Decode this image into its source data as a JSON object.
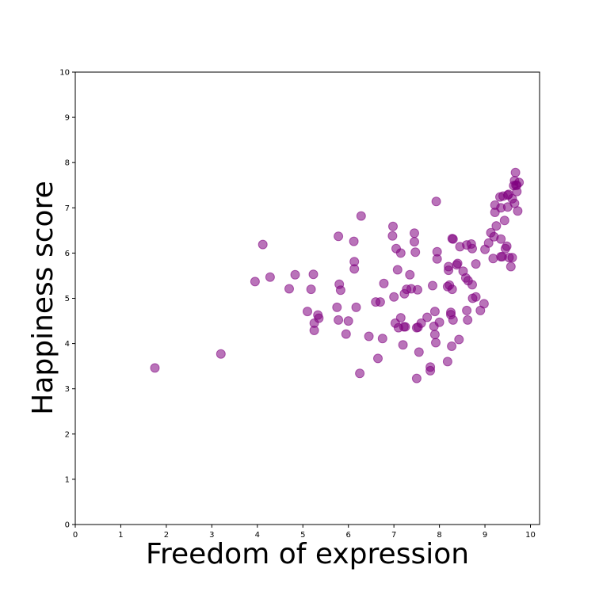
{
  "chart_data": {
    "type": "scatter",
    "title": "",
    "xlabel": "Freedom of expression",
    "ylabel": "Happiness score",
    "xlim": [
      0,
      10.2
    ],
    "ylim": [
      0,
      10
    ],
    "xticks": [
      "0",
      "1",
      "2",
      "3",
      "4",
      "5",
      "6",
      "7",
      "8",
      "9",
      "10"
    ],
    "yticks": [
      "0",
      "1",
      "2",
      "3",
      "4",
      "5",
      "6",
      "7",
      "8",
      "9",
      "10"
    ],
    "grid": false,
    "marker_color": "#800080",
    "marker_opacity": 0.55,
    "points": [
      [
        1.75,
        3.46
      ],
      [
        3.2,
        3.77
      ],
      [
        3.95,
        5.37
      ],
      [
        4.12,
        6.19
      ],
      [
        4.28,
        5.47
      ],
      [
        4.7,
        5.21
      ],
      [
        4.83,
        5.52
      ],
      [
        5.1,
        4.71
      ],
      [
        5.18,
        5.2
      ],
      [
        5.23,
        5.53
      ],
      [
        5.25,
        4.45
      ],
      [
        5.25,
        4.29
      ],
      [
        5.33,
        4.63
      ],
      [
        5.35,
        4.56
      ],
      [
        5.78,
        6.37
      ],
      [
        5.75,
        4.8
      ],
      [
        5.78,
        4.52
      ],
      [
        5.8,
        5.31
      ],
      [
        5.83,
        5.18
      ],
      [
        5.95,
        4.21
      ],
      [
        6.0,
        4.5
      ],
      [
        6.12,
        6.26
      ],
      [
        6.13,
        5.81
      ],
      [
        6.13,
        5.65
      ],
      [
        6.17,
        4.8
      ],
      [
        6.25,
        3.34
      ],
      [
        6.28,
        6.82
      ],
      [
        6.45,
        4.16
      ],
      [
        6.6,
        4.92
      ],
      [
        6.65,
        3.67
      ],
      [
        6.7,
        4.92
      ],
      [
        6.75,
        4.11
      ],
      [
        6.78,
        5.33
      ],
      [
        6.97,
        6.38
      ],
      [
        6.98,
        6.59
      ],
      [
        7.0,
        5.03
      ],
      [
        7.03,
        4.45
      ],
      [
        7.05,
        6.1
      ],
      [
        7.08,
        5.63
      ],
      [
        7.1,
        4.35
      ],
      [
        7.15,
        6.0
      ],
      [
        7.15,
        4.57
      ],
      [
        7.2,
        3.97
      ],
      [
        7.22,
        4.37
      ],
      [
        7.25,
        4.37
      ],
      [
        7.23,
        5.1
      ],
      [
        7.28,
        5.2
      ],
      [
        7.35,
        5.52
      ],
      [
        7.38,
        5.21
      ],
      [
        7.45,
        6.44
      ],
      [
        7.45,
        6.25
      ],
      [
        7.47,
        6.02
      ],
      [
        7.5,
        3.23
      ],
      [
        7.52,
        5.19
      ],
      [
        7.5,
        4.35
      ],
      [
        7.53,
        4.36
      ],
      [
        7.55,
        3.81
      ],
      [
        7.6,
        4.45
      ],
      [
        7.73,
        4.58
      ],
      [
        7.8,
        3.48
      ],
      [
        7.8,
        3.4
      ],
      [
        7.85,
        5.28
      ],
      [
        7.88,
        4.38
      ],
      [
        7.9,
        4.71
      ],
      [
        7.9,
        4.2
      ],
      [
        7.92,
        4.02
      ],
      [
        7.93,
        7.14
      ],
      [
        7.95,
        6.03
      ],
      [
        7.95,
        5.87
      ],
      [
        8.0,
        4.47
      ],
      [
        8.18,
        5.26
      ],
      [
        8.18,
        3.6
      ],
      [
        8.2,
        5.7
      ],
      [
        8.2,
        5.62
      ],
      [
        8.22,
        5.29
      ],
      [
        8.25,
        4.69
      ],
      [
        8.25,
        4.64
      ],
      [
        8.27,
        3.94
      ],
      [
        8.28,
        6.32
      ],
      [
        8.3,
        6.31
      ],
      [
        8.28,
        5.2
      ],
      [
        8.3,
        4.52
      ],
      [
        8.38,
        5.74
      ],
      [
        8.4,
        5.77
      ],
      [
        8.43,
        4.09
      ],
      [
        8.45,
        6.14
      ],
      [
        8.52,
        5.6
      ],
      [
        8.58,
        5.45
      ],
      [
        8.6,
        6.18
      ],
      [
        8.6,
        4.73
      ],
      [
        8.63,
        5.39
      ],
      [
        8.62,
        4.52
      ],
      [
        8.7,
        6.2
      ],
      [
        8.72,
        6.1
      ],
      [
        8.72,
        5.3
      ],
      [
        8.73,
        5.0
      ],
      [
        8.8,
        5.76
      ],
      [
        8.8,
        5.03
      ],
      [
        8.9,
        4.73
      ],
      [
        8.98,
        4.88
      ],
      [
        9.0,
        6.08
      ],
      [
        9.08,
        6.22
      ],
      [
        9.13,
        6.45
      ],
      [
        9.18,
        5.88
      ],
      [
        9.2,
        6.36
      ],
      [
        9.22,
        6.9
      ],
      [
        9.22,
        7.06
      ],
      [
        9.25,
        6.6
      ],
      [
        9.33,
        7.24
      ],
      [
        9.35,
        7.0
      ],
      [
        9.35,
        6.31
      ],
      [
        9.35,
        5.92
      ],
      [
        9.38,
        5.92
      ],
      [
        9.4,
        7.26
      ],
      [
        9.43,
        6.72
      ],
      [
        9.45,
        6.1
      ],
      [
        9.48,
        6.15
      ],
      [
        9.5,
        7.02
      ],
      [
        9.5,
        7.28
      ],
      [
        9.52,
        7.3
      ],
      [
        9.53,
        5.9
      ],
      [
        9.57,
        5.7
      ],
      [
        9.6,
        5.9
      ],
      [
        9.6,
        7.2
      ],
      [
        9.63,
        7.49
      ],
      [
        9.65,
        7.6
      ],
      [
        9.65,
        7.1
      ],
      [
        9.67,
        7.78
      ],
      [
        9.68,
        7.5
      ],
      [
        9.7,
        7.5
      ],
      [
        9.7,
        7.36
      ],
      [
        9.72,
        6.93
      ],
      [
        9.75,
        7.56
      ]
    ]
  }
}
